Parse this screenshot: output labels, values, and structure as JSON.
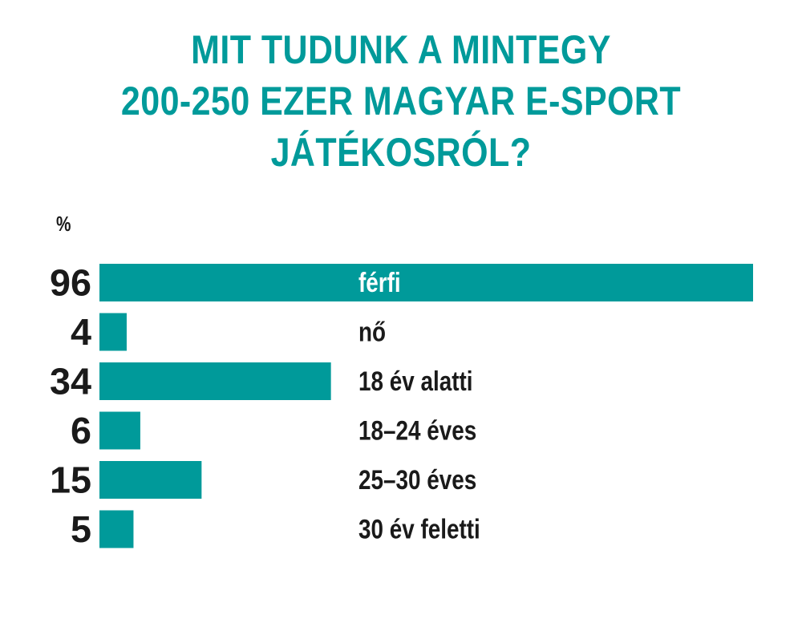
{
  "colors": {
    "accent": "#009a9a",
    "text": "#1a1a1a",
    "inverse_text": "#ffffff"
  },
  "chart_data": {
    "type": "bar",
    "orientation": "horizontal",
    "title_lines": [
      "MIT TUDUNK A MINTEGY",
      "200-250 EZER MAGYAR E-SPORT",
      "JÁTÉKOSRÓL?"
    ],
    "unit": "%",
    "categories": [
      "férfi",
      "nő",
      "18 év alatti",
      "18–24 éves",
      "25–30 éves",
      "30 év feletti"
    ],
    "values": [
      96,
      4,
      34,
      6,
      15,
      5
    ],
    "xlim": [
      0,
      96
    ],
    "grid": false,
    "legend": "none"
  }
}
